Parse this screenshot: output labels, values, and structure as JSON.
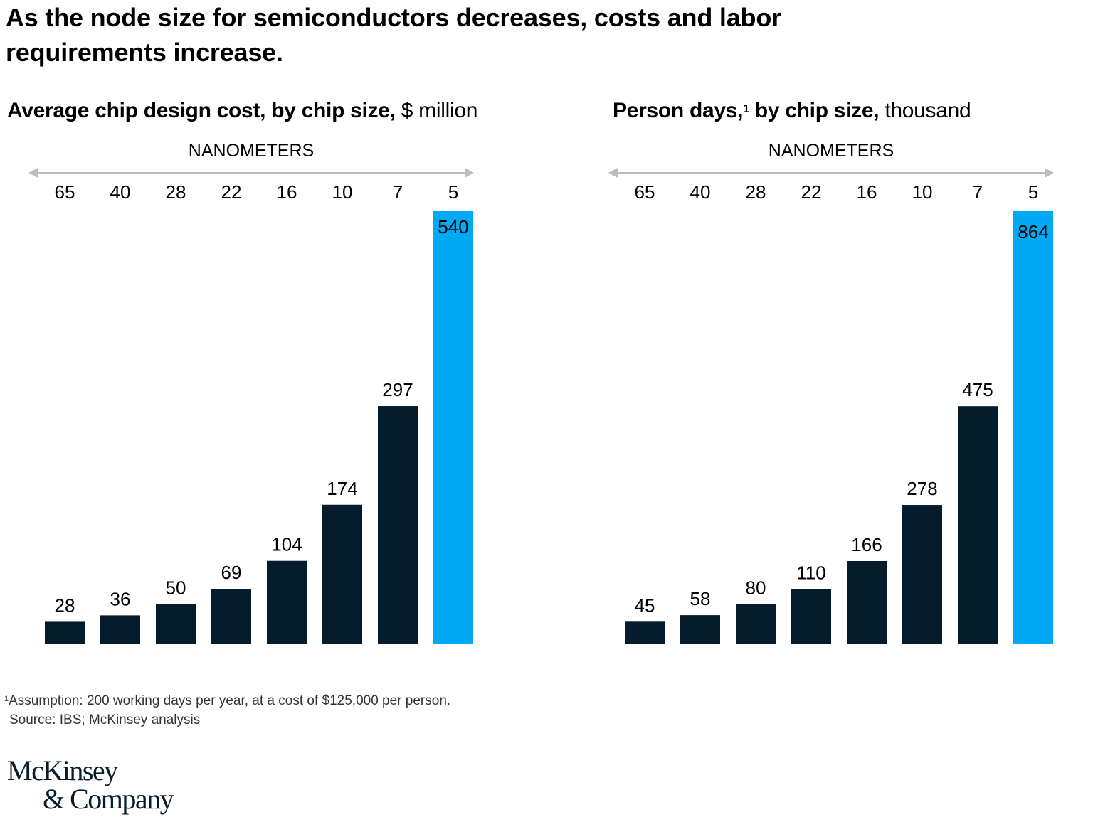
{
  "title": "As the node size for semiconductors decreases, costs and labor requirements increase.",
  "colors": {
    "bar": "#051c2c",
    "highlight": "#00a9f4",
    "axis": "#bdbdbd",
    "text": "#000000"
  },
  "chart_data": [
    {
      "type": "bar",
      "title_bold": "Average chip design cost, by chip size,",
      "title_unit": "$ million",
      "xlabel": "NANOMETERS",
      "axis_direction": "double-arrow",
      "categories": [
        "65",
        "40",
        "28",
        "22",
        "16",
        "10",
        "7",
        "5"
      ],
      "values": [
        28,
        36,
        50,
        69,
        104,
        174,
        297,
        540
      ],
      "highlight_index": 7,
      "ylim": [
        0,
        540
      ],
      "grid": false,
      "legend": "none"
    },
    {
      "type": "bar",
      "title_bold": "Person days,",
      "title_sup": "1",
      "title_bold_2": "by chip size,",
      "title_unit": "thousand",
      "xlabel": "NANOMETERS",
      "axis_direction": "double-arrow",
      "categories": [
        "65",
        "40",
        "28",
        "22",
        "16",
        "10",
        "7",
        "5"
      ],
      "values": [
        45,
        58,
        80,
        110,
        166,
        278,
        475,
        864
      ],
      "highlight_index": 7,
      "ylim": [
        0,
        864
      ],
      "grid": false,
      "legend": "none"
    }
  ],
  "footnote": {
    "marker": "1",
    "text": "Assumption: 200 working days per year, at a cost of $125,000 per person.",
    "source": "Source: IBS; McKinsey analysis"
  },
  "logo": {
    "line1": "McKinsey",
    "line2": "& Company"
  }
}
